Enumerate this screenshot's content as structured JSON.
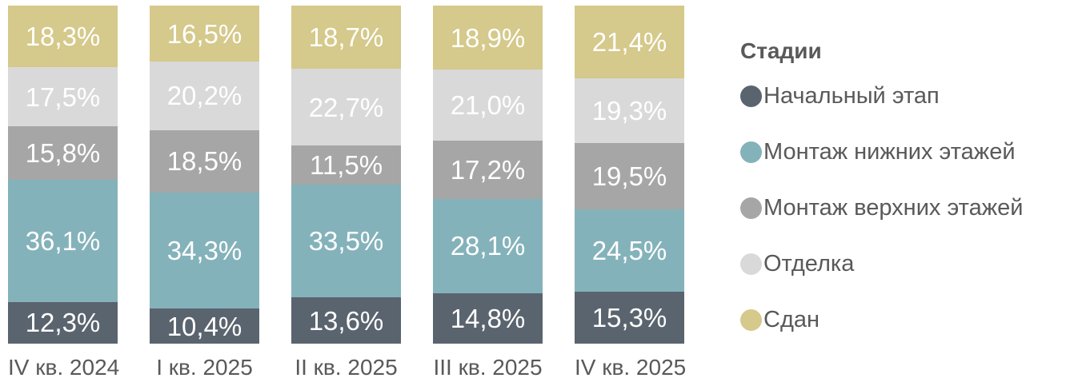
{
  "legend": {
    "title": "Стадии",
    "items": [
      {
        "label": "Начальный этап",
        "color": "#5a646e"
      },
      {
        "label": "Монтаж нижних этажей",
        "color": "#84b2ba"
      },
      {
        "label": "Монтаж верхних этажей",
        "color": "#a6a6a6"
      },
      {
        "label": "Отделка",
        "color": "#d9d9d9"
      },
      {
        "label": "Сдан",
        "color": "#d5c98b"
      }
    ]
  },
  "chart_data": {
    "type": "bar",
    "stacked": true,
    "percent_of_total": true,
    "value_suffix": "%",
    "decimal_separator": ",",
    "grid": false,
    "legend_position": "right",
    "title": "",
    "xlabel": "",
    "ylabel": "",
    "ylim": [
      0,
      100
    ],
    "categories": [
      "IV кв. 2024",
      "I кв. 2025",
      "II кв. 2025",
      "III кв. 2025",
      "IV кв. 2025"
    ],
    "series": [
      {
        "name": "Начальный этап",
        "color": "#5a646e",
        "text_color": "#ffffff",
        "values": [
          12.3,
          10.4,
          13.6,
          14.8,
          15.3
        ]
      },
      {
        "name": "Монтаж нижних этажей",
        "color": "#84b2ba",
        "text_color": "#ffffff",
        "values": [
          36.1,
          34.3,
          33.5,
          28.1,
          24.5
        ]
      },
      {
        "name": "Монтаж верхних этажей",
        "color": "#a6a6a6",
        "text_color": "#ffffff",
        "values": [
          15.8,
          18.5,
          11.5,
          17.2,
          19.5
        ]
      },
      {
        "name": "Отделка",
        "color": "#d9d9d9",
        "text_color": "#ffffff",
        "values": [
          17.5,
          20.2,
          22.7,
          21.0,
          19.3
        ]
      },
      {
        "name": "Сдан",
        "color": "#d5c98b",
        "text_color": "#ffffff",
        "values": [
          18.3,
          16.5,
          18.7,
          18.9,
          21.4
        ]
      }
    ]
  }
}
